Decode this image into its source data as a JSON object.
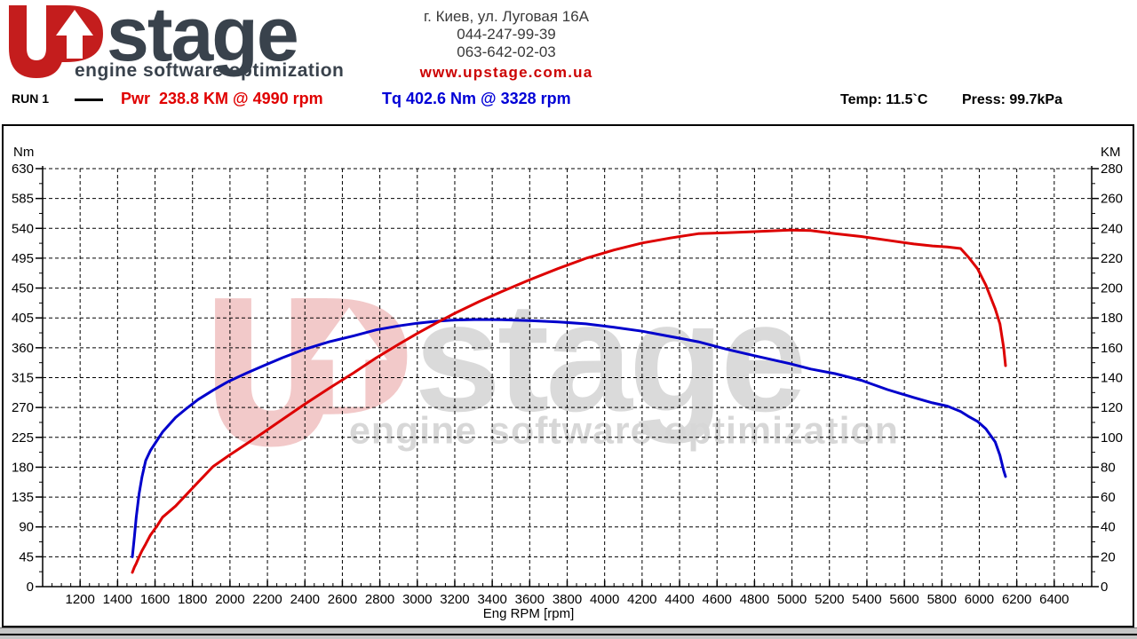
{
  "header": {
    "logo": {
      "brand": "stage",
      "tagline": "engine software optimization"
    },
    "address": "г. Киев, ул. Луговая 16А",
    "phone1": "044-247-99-39",
    "phone2": "063-642-02-03",
    "website": "www.upstage.com.ua"
  },
  "run_bar": {
    "run_label": "RUN 1",
    "power_peak": "Pwr  238.8 KM @ 4990 rpm",
    "torque_peak": "Tq 402.6 Nm @ 3328 rpm",
    "temp": "Temp: 11.5`C",
    "press": "Press: 99.7kPa"
  },
  "colors": {
    "power_curve": "#dd0000",
    "torque_curve": "#0000cc",
    "accent_red": "#cc0000",
    "logo_dark": "#39424c",
    "grid": "#000000"
  },
  "chart_data": {
    "type": "line",
    "title": "",
    "xlabel": "Eng RPM [rpm]",
    "grid": "dashed",
    "x_axis": {
      "min": 1000,
      "max": 6600,
      "ticks": [
        1200,
        1400,
        1600,
        1800,
        2000,
        2200,
        2400,
        2600,
        2800,
        3000,
        3200,
        3400,
        3600,
        3800,
        4000,
        4200,
        4400,
        4600,
        4800,
        5000,
        5200,
        5400,
        5600,
        5800,
        6000,
        6200,
        6400
      ],
      "minor_step": 50
    },
    "left_axis": {
      "label": "Nm",
      "min": 0,
      "max": 630,
      "ticks": [
        0,
        45,
        90,
        135,
        180,
        225,
        270,
        315,
        360,
        405,
        450,
        495,
        540,
        585,
        630
      ],
      "minor_step": 22.5
    },
    "right_axis": {
      "label": "KM",
      "min": 0,
      "max": 280,
      "ticks": [
        0,
        20,
        40,
        60,
        80,
        100,
        120,
        140,
        160,
        180,
        200,
        220,
        240,
        260,
        280
      ],
      "minor_step": 10
    },
    "rpm": [
      1479,
      1490,
      1500,
      1515,
      1530,
      1550,
      1575,
      1610,
      1640,
      1710,
      1770,
      1830,
      1910,
      1990,
      2090,
      2180,
      2280,
      2400,
      2530,
      2660,
      2780,
      2900,
      3000,
      3100,
      3200,
      3328,
      3450,
      3600,
      3750,
      3900,
      4050,
      4200,
      4350,
      4500,
      4650,
      4800,
      4990,
      5100,
      5230,
      5370,
      5510,
      5650,
      5750,
      5830,
      5900,
      5940,
      5990,
      6035,
      6085,
      6110,
      6130,
      6140
    ],
    "series": [
      {
        "name": "Torque",
        "unit": "Nm",
        "axis": "left",
        "color": "#0000cc",
        "peak": {
          "value": 402.6,
          "rpm": 3328
        },
        "values": [
          45,
          75,
          105,
          140,
          165,
          190,
          205,
          220,
          233,
          255,
          269,
          282,
          296,
          309,
          322,
          333,
          345,
          358,
          369,
          378,
          387,
          393,
          397,
          400,
          401.8,
          402.6,
          402.3,
          401,
          399,
          396,
          391,
          385,
          377,
          369,
          358,
          348,
          336,
          328,
          321,
          311,
          297,
          285,
          277,
          272,
          264,
          257,
          249,
          238,
          218,
          198,
          175,
          166
        ]
      },
      {
        "name": "Power",
        "unit": "KM",
        "axis": "right",
        "color": "#dd0000",
        "peak": {
          "value": 238.8,
          "rpm": 4990
        },
        "values": [
          9.5,
          13,
          15.5,
          20,
          24,
          28.5,
          34.5,
          40.5,
          46.5,
          54,
          62,
          70,
          80.5,
          87.5,
          95.8,
          103.4,
          112,
          122.3,
          132.9,
          143.2,
          153.2,
          162.3,
          169.6,
          176.5,
          183.1,
          190.8,
          197.6,
          205.5,
          213,
          219.9,
          225.5,
          230.2,
          233.5,
          236.4,
          237,
          237.8,
          238.8,
          238.5,
          236.5,
          234.5,
          232,
          229.5,
          228.2,
          227.5,
          226.5,
          221,
          213,
          202,
          186,
          176,
          160,
          148
        ]
      }
    ]
  }
}
